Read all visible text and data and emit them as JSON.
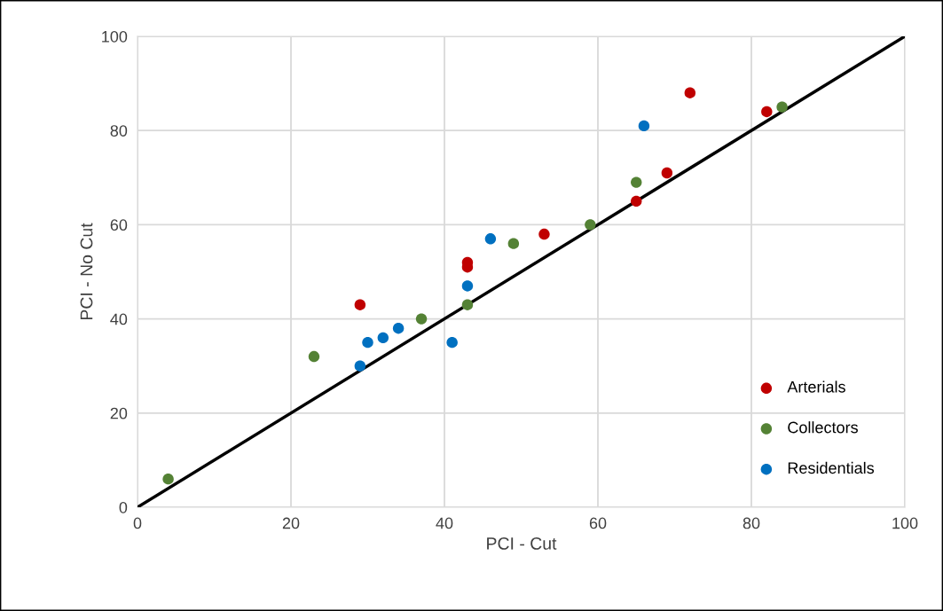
{
  "chart_data": {
    "type": "scatter",
    "xlabel": "PCI - Cut",
    "ylabel": "PCI - No Cut",
    "xlim": [
      0,
      100
    ],
    "ylim": [
      0,
      100
    ],
    "xticks": [
      0,
      20,
      40,
      60,
      80,
      100
    ],
    "yticks": [
      0,
      20,
      40,
      60,
      80,
      100
    ],
    "grid": true,
    "legend": "bottom right",
    "marker": "circle",
    "series": [
      {
        "name": "Arterials",
        "color": "#c00000",
        "x": [
          29,
          43,
          43,
          53,
          65,
          69,
          72,
          82
        ],
        "values": [
          43,
          52,
          51,
          58,
          65,
          71,
          88,
          84
        ]
      },
      {
        "name": "Collectors",
        "color": "#548235",
        "x": [
          4,
          23,
          37,
          43,
          49,
          59,
          65,
          84
        ],
        "values": [
          6,
          32,
          40,
          43,
          56,
          60,
          69,
          85
        ]
      },
      {
        "name": "Residentials",
        "color": "#0070c0",
        "x": [
          29,
          30,
          32,
          34,
          41,
          43,
          46,
          66
        ],
        "values": [
          30,
          35,
          36,
          38,
          35,
          47,
          57,
          81
        ]
      },
      {
        "type": "line",
        "color": "#000000",
        "x": [
          0,
          100
        ],
        "values": [
          0,
          100
        ],
        "line_style": "solid",
        "marker": "none"
      }
    ]
  }
}
